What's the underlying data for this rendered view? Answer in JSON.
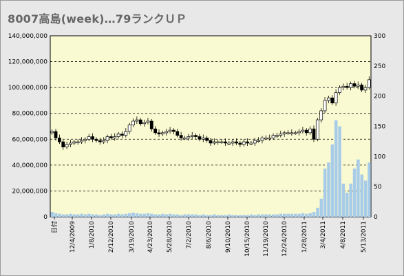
{
  "title": "8007高島(week)…79ランクＵＰ",
  "chart_data": {
    "type": "candlestick+bar",
    "title": "8007高島(week)…79ランクＵＰ",
    "y_left": {
      "min": 0,
      "max": 140000000,
      "ticks": [
        "0",
        "20,000,000",
        "40,000,000",
        "60,000,000",
        "80,000,000",
        "100,000,000",
        "120,000,000",
        "140,000,000"
      ]
    },
    "y_right": {
      "min": 0,
      "max": 300,
      "ticks": [
        "0",
        "50",
        "100",
        "150",
        "200",
        "250",
        "300"
      ]
    },
    "x_ticks": [
      "日付",
      "12/4/2009",
      "1/8/2010",
      "2/12/2010",
      "3/19/2010",
      "4/23/2010",
      "5/28/2010",
      "7/2/2010",
      "8/6/2010",
      "9/10/2010",
      "10/15/2010",
      "11/19/2010",
      "12/24/2010",
      "1/28/2011",
      "3/4/2011",
      "4/8/2011",
      "5/13/2011"
    ],
    "grid": "horizontal dashed",
    "price_series": [
      66,
      61,
      58,
      54,
      56,
      57,
      58,
      58,
      59,
      60,
      62,
      60,
      59,
      58,
      59,
      62,
      61,
      62,
      64,
      63,
      66,
      71,
      74,
      75,
      72,
      73,
      74,
      68,
      65,
      64,
      65,
      66,
      67,
      66,
      63,
      61,
      61,
      62,
      63,
      62,
      60,
      61,
      59,
      57,
      58,
      58,
      58,
      57,
      57,
      58,
      57,
      56,
      58,
      57,
      57,
      59,
      59,
      61,
      61,
      61,
      63,
      63,
      64,
      65,
      65,
      65,
      65,
      66,
      67,
      65,
      68,
      60,
      75,
      82,
      90,
      92,
      88,
      96,
      100,
      101,
      100,
      103,
      101,
      102,
      98,
      100,
      106
    ],
    "volume_series": [
      8,
      6,
      5,
      4,
      4,
      5,
      4,
      4,
      5,
      4,
      5,
      4,
      4,
      3,
      4,
      5,
      4,
      4,
      5,
      4,
      5,
      6,
      7,
      6,
      5,
      5,
      6,
      5,
      4,
      4,
      5,
      4,
      5,
      4,
      4,
      3,
      4,
      4,
      4,
      4,
      3,
      4,
      3,
      3,
      4,
      3,
      3,
      3,
      4,
      3,
      3,
      3,
      3,
      3,
      4,
      3,
      4,
      4,
      4,
      4,
      4,
      4,
      5,
      5,
      5,
      5,
      5,
      5,
      6,
      5,
      6,
      8,
      15,
      30,
      80,
      90,
      120,
      160,
      150,
      55,
      40,
      55,
      80,
      95,
      70,
      60,
      90
    ]
  }
}
